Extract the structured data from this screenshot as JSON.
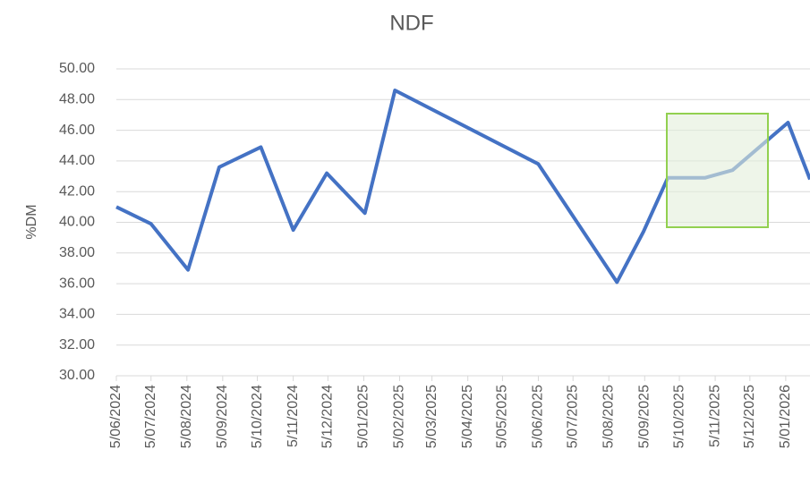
{
  "chart_data": {
    "type": "line",
    "title": "NDF",
    "y_label": "%DM",
    "x": [
      "2024-06-05",
      "2024-07-05",
      "2024-08-06",
      "2024-09-02",
      "2024-10-08",
      "2024-11-05",
      "2024-12-04",
      "2025-01-06",
      "2025-02-01",
      "2025-06-05",
      "2025-08-12",
      "2025-09-04",
      "2025-09-25",
      "2025-10-27",
      "2025-11-20",
      "2026-01-07",
      "2026-01-26"
    ],
    "series": [
      {
        "name": "NDF",
        "color": "#4472c4",
        "values": [
          41.0,
          39.9,
          36.9,
          43.6,
          44.9,
          39.5,
          43.2,
          40.6,
          48.6,
          43.8,
          36.1,
          39.4,
          42.9,
          42.9,
          43.4,
          46.5,
          42.8
        ]
      }
    ],
    "xlim": [
      "2024-06-05",
      "2026-01-26"
    ],
    "xticks": [
      {
        "value": "2024-06-05",
        "label": "5/06/2024"
      },
      {
        "value": "2024-07-05",
        "label": "5/07/2024"
      },
      {
        "value": "2024-08-05",
        "label": "5/08/2024"
      },
      {
        "value": "2024-09-05",
        "label": "5/09/2024"
      },
      {
        "value": "2024-10-05",
        "label": "5/10/2024"
      },
      {
        "value": "2024-11-05",
        "label": "5/11/2024"
      },
      {
        "value": "2024-12-05",
        "label": "5/12/2024"
      },
      {
        "value": "2025-01-05",
        "label": "5/01/2025"
      },
      {
        "value": "2025-02-05",
        "label": "5/02/2025"
      },
      {
        "value": "2025-03-05",
        "label": "5/03/2025"
      },
      {
        "value": "2025-04-05",
        "label": "5/04/2025"
      },
      {
        "value": "2025-05-05",
        "label": "5/05/2025"
      },
      {
        "value": "2025-06-05",
        "label": "5/06/2025"
      },
      {
        "value": "2025-07-05",
        "label": "5/07/2025"
      },
      {
        "value": "2025-08-05",
        "label": "5/08/2025"
      },
      {
        "value": "2025-09-05",
        "label": "5/09/2025"
      },
      {
        "value": "2025-10-05",
        "label": "5/10/2025"
      },
      {
        "value": "2025-11-05",
        "label": "5/11/2025"
      },
      {
        "value": "2025-12-05",
        "label": "5/12/2025"
      },
      {
        "value": "2026-01-05",
        "label": "5/01/2026"
      }
    ],
    "ylim": [
      30,
      50
    ],
    "yticks": [
      {
        "value": 30,
        "label": "30.00"
      },
      {
        "value": 32,
        "label": "32.00"
      },
      {
        "value": 34,
        "label": "34.00"
      },
      {
        "value": 36,
        "label": "36.00"
      },
      {
        "value": 38,
        "label": "38.00"
      },
      {
        "value": 40,
        "label": "40.00"
      },
      {
        "value": 42,
        "label": "42.00"
      },
      {
        "value": 44,
        "label": "44.00"
      },
      {
        "value": 46,
        "label": "46.00"
      },
      {
        "value": 48,
        "label": "48.00"
      },
      {
        "value": 50,
        "label": "50.00"
      }
    ],
    "grid": true
  }
}
